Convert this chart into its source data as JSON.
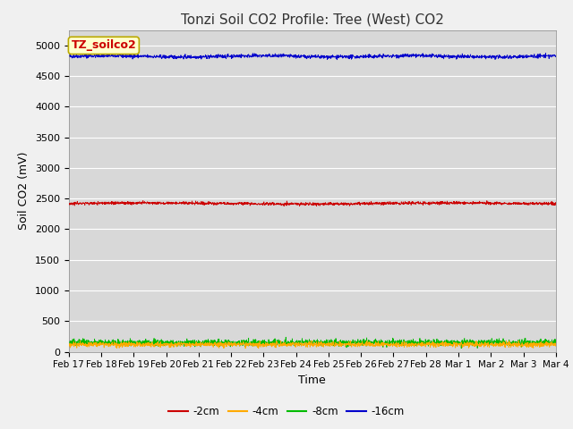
{
  "title": "Tonzi Soil CO2 Profile: Tree (West) CO2",
  "xlabel": "Time",
  "ylabel": "Soil CO2 (mV)",
  "ylim": [
    0,
    5250
  ],
  "yticks": [
    0,
    500,
    1000,
    1500,
    2000,
    2500,
    3000,
    3500,
    4000,
    4500,
    5000
  ],
  "background_color": "#f0f0f0",
  "plot_bg_color": "#d8d8d8",
  "series": {
    "-2cm": {
      "color": "#cc0000",
      "mean": 2420,
      "noise": 12,
      "label": "-2cm"
    },
    "-4cm": {
      "color": "#ffaa00",
      "mean": 120,
      "noise": 20,
      "label": "-4cm"
    },
    "-8cm": {
      "color": "#00bb00",
      "mean": 150,
      "noise": 25,
      "label": "-8cm"
    },
    "-16cm": {
      "color": "#0000cc",
      "mean": 4820,
      "noise": 15,
      "label": "-16cm"
    }
  },
  "n_points": 2000,
  "x_start": 0,
  "x_end": 15,
  "xtick_labels": [
    "Feb 17",
    "Feb 18",
    "Feb 19",
    "Feb 20",
    "Feb 21",
    "Feb 22",
    "Feb 23",
    "Feb 24",
    "Feb 25",
    "Feb 26",
    "Feb 27",
    "Feb 28",
    "Mar 1",
    "Mar 2",
    "Mar 3",
    "Mar 4"
  ],
  "xtick_positions": [
    0,
    1,
    2,
    3,
    4,
    5,
    6,
    7,
    8,
    9,
    10,
    11,
    12,
    13,
    14,
    15
  ],
  "legend_label": "TZ_soilco2",
  "legend_bg": "#ffffcc",
  "legend_border": "#bbaa00",
  "title_fontsize": 11,
  "axis_label_fontsize": 9,
  "tick_fontsize": 8
}
